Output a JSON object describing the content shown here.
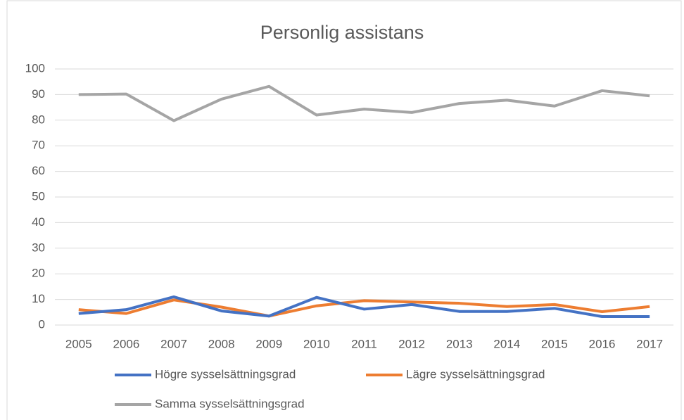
{
  "chart_data": {
    "type": "line",
    "title": "Personlig assistans",
    "categories": [
      "2005",
      "2006",
      "2007",
      "2008",
      "2009",
      "2010",
      "2011",
      "2012",
      "2013",
      "2014",
      "2015",
      "2016",
      "2017"
    ],
    "series": [
      {
        "name": "Högre sysselsättningsgrad",
        "color": "#4472c4",
        "values": [
          4.5,
          6,
          11,
          5.5,
          3.5,
          10.8,
          6.2,
          8,
          5.3,
          5.3,
          6.5,
          3.3,
          3.3
        ]
      },
      {
        "name": "Lägre sysselsättningsgrad",
        "color": "#ed7d31",
        "values": [
          6,
          4.5,
          9.8,
          7,
          3.5,
          7.5,
          9.5,
          9,
          8.5,
          7.2,
          8,
          5.2,
          7.2
        ]
      },
      {
        "name": "Samma sysselsättningsgrad",
        "color": "#a5a5a5",
        "values": [
          90,
          90.2,
          79.8,
          88.2,
          93.2,
          82,
          84.3,
          83,
          86.5,
          87.8,
          85.5,
          91.5,
          89.5
        ]
      }
    ],
    "ylim": [
      0,
      100
    ],
    "yticks": [
      0,
      10,
      20,
      30,
      40,
      50,
      60,
      70,
      80,
      90,
      100
    ],
    "grid": true,
    "legend": "bottom"
  }
}
